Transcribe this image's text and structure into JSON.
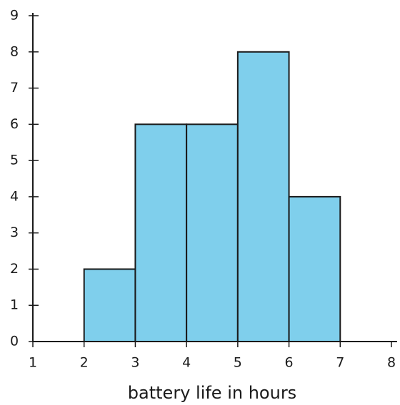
{
  "chart_data": {
    "type": "histogram",
    "x_label": "battery life in hours",
    "bins": [
      2,
      3,
      4,
      5,
      6,
      7
    ],
    "counts": [
      2,
      6,
      6,
      8,
      4
    ],
    "color": "#7fcfec",
    "xlim": [
      1,
      8
    ],
    "xticks": [
      1,
      2,
      3,
      4,
      5,
      6,
      7,
      8
    ],
    "ylim": [
      0,
      9
    ],
    "yticks": [
      0,
      1,
      2,
      3,
      4,
      5,
      6,
      7,
      8,
      9
    ]
  }
}
